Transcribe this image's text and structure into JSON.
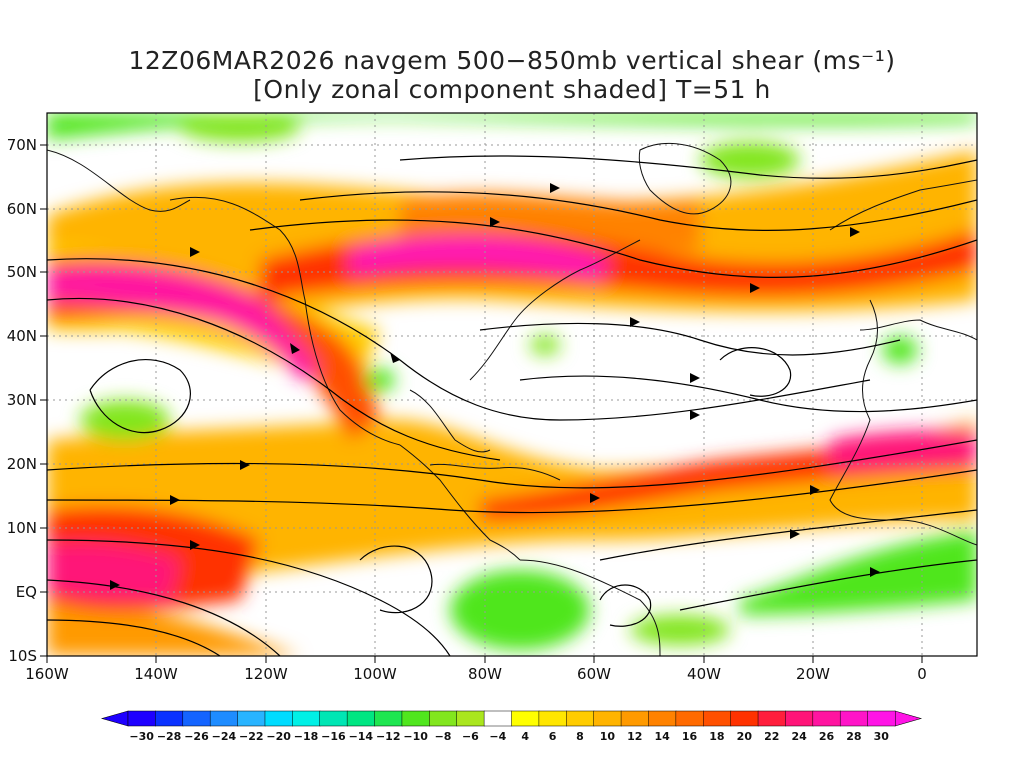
{
  "title_line1": "12Z06MAR2026 navgem 500−850mb vertical shear (ms⁻¹)",
  "title_line2": "[Only zonal component shaded] T=51 h",
  "map": {
    "lon_range": [
      -160,
      10
    ],
    "lat_range": [
      -10,
      75
    ],
    "lon_ticks": [
      "160W",
      "140W",
      "120W",
      "100W",
      "80W",
      "60W",
      "40W",
      "20W",
      "0"
    ],
    "lat_ticks": [
      "10S",
      "EQ",
      "10N",
      "20N",
      "30N",
      "40N",
      "50N",
      "60N",
      "70N"
    ]
  },
  "colorbar": {
    "labels": [
      "-30",
      "-28",
      "-26",
      "-24",
      "-22",
      "-20",
      "-18",
      "-16",
      "-14",
      "-12",
      "-10",
      "-8",
      "-6",
      "-4",
      "4",
      "6",
      "8",
      "10",
      "12",
      "14",
      "16",
      "18",
      "20",
      "22",
      "24",
      "26",
      "28",
      "30"
    ],
    "colors": [
      "#1e00ff",
      "#0a32ff",
      "#1464ff",
      "#1e8cff",
      "#28b4ff",
      "#00dcff",
      "#00f0e6",
      "#00e6b4",
      "#00e682",
      "#1ee650",
      "#50e61e",
      "#82e61e",
      "#aae61e",
      "#ffffff",
      "#ffff00",
      "#ffe600",
      "#ffcc00",
      "#ffb400",
      "#ff9a00",
      "#ff8200",
      "#ff6a00",
      "#ff5000",
      "#ff3200",
      "#ff1e3c",
      "#ff1478",
      "#ff14a0",
      "#ff14c8",
      "#ff14e6"
    ]
  }
}
